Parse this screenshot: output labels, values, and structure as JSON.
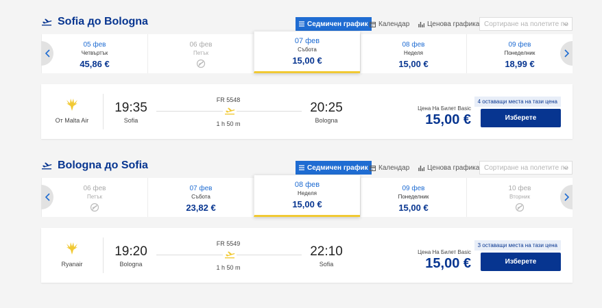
{
  "sections": [
    {
      "title": "Sofia до Bologna",
      "tabs": [
        "Седмичен график",
        "Календар",
        "Ценова графика"
      ],
      "active_tab": 0,
      "sort_placeholder": "Сортиране на полетите по",
      "days": [
        {
          "date": "05 фев",
          "weekday": "Четвъртък",
          "price": "45,86 €"
        },
        {
          "date": "06 фев",
          "weekday": "Петък"
        },
        {
          "date": "07 фев",
          "weekday": "Събота",
          "price": "15,00 €"
        },
        {
          "date": "08 фев",
          "weekday": "Неделя",
          "price": "15,00 €"
        },
        {
          "date": "09 фев",
          "weekday": "Понеделник",
          "price": "18,99 €"
        }
      ],
      "selected_day": 2,
      "flight": {
        "airline": "От Malta Air",
        "depart_time": "19:35",
        "depart_city": "Sofia",
        "flight_no": "FR 5548",
        "duration": "1 h 50 m",
        "arrive_time": "20:25",
        "arrive_city": "Bologna",
        "price_label": "Цена На Билет Basic",
        "price": "15,00 €",
        "seats": "4 оставащи места на тази цена",
        "button": "Изберете"
      }
    },
    {
      "title": "Bologna до Sofia",
      "tabs": [
        "Седмичен график",
        "Календар",
        "Ценова графика"
      ],
      "active_tab": 0,
      "sort_placeholder": "Сортиране на полетите по",
      "days": [
        {
          "date": "06 фев",
          "weekday": "Петък"
        },
        {
          "date": "07 фев",
          "weekday": "Събота",
          "price": "23,82 €"
        },
        {
          "date": "08 фев",
          "weekday": "Неделя",
          "price": "15,00 €"
        },
        {
          "date": "09 фев",
          "weekday": "Понеделник",
          "price": "15,00 €"
        },
        {
          "date": "10 фев",
          "weekday": "Вторник"
        }
      ],
      "selected_day": 2,
      "flight": {
        "airline": "Ryanair",
        "depart_time": "19:20",
        "depart_city": "Bologna",
        "flight_no": "FR 5549",
        "duration": "1 h 50 m",
        "arrive_time": "22:10",
        "arrive_city": "Sofia",
        "price_label": "Цена На Билет Basic",
        "price": "15,00 €",
        "seats": "3 оставащи места на тази цена",
        "button": "Изберете"
      }
    }
  ]
}
